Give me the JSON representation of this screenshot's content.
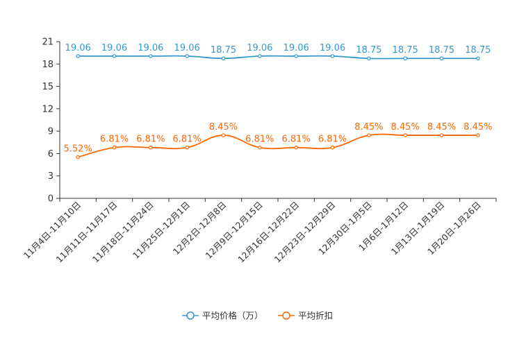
{
  "chart_data": {
    "type": "line",
    "title": "",
    "xlabel": "",
    "ylabel": "",
    "ylim": [
      0,
      21
    ],
    "yticks": [
      0,
      3,
      6,
      9,
      12,
      15,
      18,
      21
    ],
    "categories": [
      "11月4日-11月10日",
      "11月11日-11月17日",
      "11月18日-11月24日",
      "11月25日-12月1日",
      "12月2日-12月8日",
      "12月9日-12月15日",
      "12月16日-12月22日",
      "12月23日-12月29日",
      "12月30日-1月5日",
      "1月6日-1月12日",
      "1月13日-1月19日",
      "1月20日-1月26日"
    ],
    "series": [
      {
        "name": "平均价格（万）",
        "color": "#3398cc",
        "values": [
          19.06,
          19.06,
          19.06,
          19.06,
          18.75,
          19.06,
          19.06,
          19.06,
          18.75,
          18.75,
          18.75,
          18.75
        ],
        "labels": [
          "19.06",
          "19.06",
          "19.06",
          "19.06",
          "18.75",
          "19.06",
          "19.06",
          "19.06",
          "18.75",
          "18.75",
          "18.75",
          "18.75"
        ]
      },
      {
        "name": "平均折扣",
        "color": "#ff6600",
        "values": [
          5.52,
          6.81,
          6.81,
          6.81,
          8.45,
          6.81,
          6.81,
          6.81,
          8.45,
          8.45,
          8.45,
          8.45
        ],
        "labels": [
          "5.52%",
          "6.81%",
          "6.81%",
          "6.81%",
          "8.45%",
          "6.81%",
          "6.81%",
          "6.81%",
          "8.45%",
          "8.45%",
          "8.45%",
          "8.45%"
        ]
      }
    ],
    "legend_position": "bottom-center"
  }
}
